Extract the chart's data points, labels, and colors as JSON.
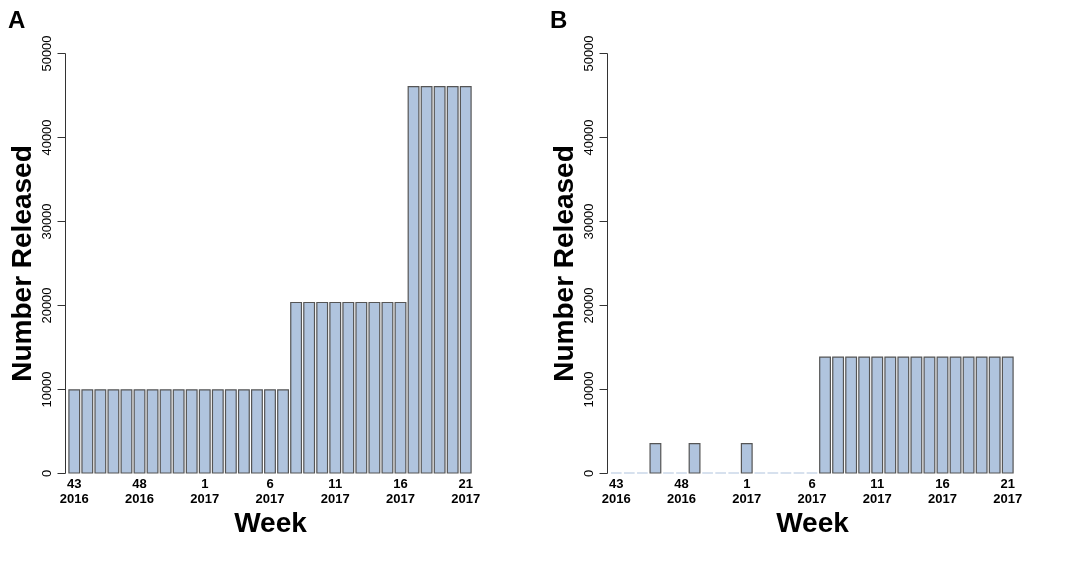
{
  "chart_data": [
    {
      "type": "bar",
      "title": "A",
      "xlabel": "Week",
      "ylabel": "Number Released",
      "categories": [
        "43\n2016",
        null,
        null,
        null,
        null,
        "48\n2016",
        null,
        null,
        null,
        null,
        "1\n2017",
        null,
        null,
        null,
        null,
        "6\n2017",
        null,
        null,
        null,
        null,
        "11\n2017",
        null,
        null,
        null,
        null,
        "16\n2017",
        null,
        null,
        null,
        null,
        "21\n2017"
      ],
      "values": [
        9900,
        9900,
        9900,
        9900,
        9900,
        9900,
        9900,
        9900,
        9900,
        9900,
        9900,
        9900,
        9900,
        9900,
        9900,
        9900,
        9900,
        20300,
        20300,
        20300,
        20300,
        20300,
        20300,
        20300,
        20300,
        20300,
        46000,
        46000,
        46000,
        46000,
        46000
      ],
      "color": "#b0c4de",
      "ylim": [
        0,
        50000
      ],
      "yticks": [
        0,
        10000,
        20000,
        30000,
        40000,
        50000
      ],
      "grid": false
    },
    {
      "type": "bar",
      "title": "B",
      "xlabel": "Week",
      "ylabel": "Number Released",
      "categories": [
        "43\n2016",
        null,
        null,
        null,
        null,
        "48\n2016",
        null,
        null,
        null,
        null,
        "1\n2017",
        null,
        null,
        null,
        null,
        "6\n2017",
        null,
        null,
        null,
        null,
        "11\n2017",
        null,
        null,
        null,
        null,
        "16\n2017",
        null,
        null,
        null,
        null,
        "21\n2017"
      ],
      "values": [
        0,
        0,
        0,
        3500,
        0,
        0,
        3500,
        0,
        0,
        0,
        3500,
        0,
        0,
        0,
        0,
        0,
        13800,
        13800,
        13800,
        13800,
        13800,
        13800,
        13800,
        13800,
        13800,
        13800,
        13800,
        13800,
        13800,
        13800,
        13800
      ],
      "color": "#b0c4de",
      "ylim": [
        0,
        50000
      ],
      "yticks": [
        0,
        10000,
        20000,
        30000,
        40000,
        50000
      ],
      "grid": false
    }
  ]
}
